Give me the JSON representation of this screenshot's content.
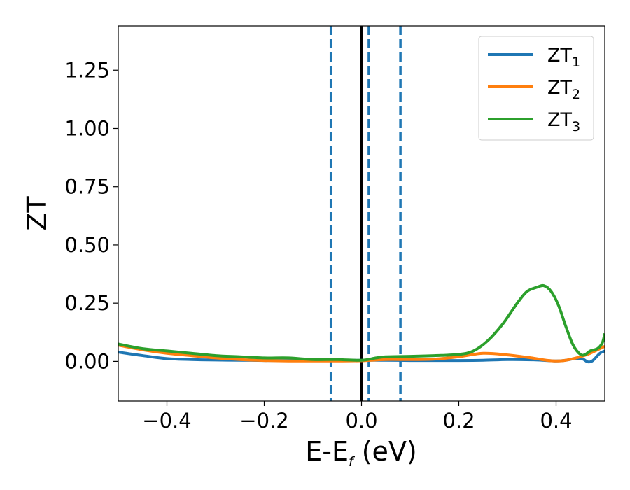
{
  "chart_data": {
    "type": "line",
    "xlabel": {
      "main": "E-E",
      "sub": "f",
      "unit": " (eV)"
    },
    "ylabel": "ZT",
    "xlim": [
      -0.5,
      0.5
    ],
    "ylim": [
      -0.17,
      1.44
    ],
    "xticks": [
      -0.4,
      -0.2,
      0.0,
      0.2,
      0.4
    ],
    "xtick_labels": [
      "−0.4",
      "−0.2",
      "0.0",
      "0.2",
      "0.4"
    ],
    "yticks": [
      0.0,
      0.25,
      0.5,
      0.75,
      1.0,
      1.25
    ],
    "ytick_labels": [
      "0.00",
      "0.25",
      "0.50",
      "0.75",
      "1.00",
      "1.25"
    ],
    "grid": false,
    "legend_position": "top-right",
    "vlines": [
      {
        "x": 0.0,
        "color": "#000000",
        "style": "solid"
      },
      {
        "x": -0.063,
        "color": "#1f77b4",
        "style": "dashed"
      },
      {
        "x": 0.015,
        "color": "#1f77b4",
        "style": "dashed"
      },
      {
        "x": 0.08,
        "color": "#1f77b4",
        "style": "dashed"
      }
    ],
    "series": [
      {
        "name": "ZT",
        "sub": "1",
        "color": "#1f77b4",
        "x": [
          -0.5,
          -0.45,
          -0.4,
          -0.35,
          -0.3,
          -0.25,
          -0.2,
          -0.15,
          -0.1,
          -0.05,
          0.0,
          0.05,
          0.1,
          0.15,
          0.2,
          0.25,
          0.3,
          0.35,
          0.38,
          0.4,
          0.42,
          0.44,
          0.455,
          0.465,
          0.475,
          0.49,
          0.5
        ],
        "y": [
          0.04,
          0.025,
          0.012,
          0.008,
          0.006,
          0.005,
          0.004,
          0.004,
          0.004,
          0.004,
          0.005,
          0.005,
          0.004,
          0.004,
          0.004,
          0.005,
          0.008,
          0.007,
          0.004,
          0.002,
          0.005,
          0.013,
          0.01,
          -0.002,
          0.003,
          0.035,
          0.045
        ]
      },
      {
        "name": "ZT",
        "sub": "2",
        "color": "#ff7f0e",
        "x": [
          -0.5,
          -0.45,
          -0.4,
          -0.35,
          -0.3,
          -0.25,
          -0.2,
          -0.15,
          -0.1,
          -0.05,
          0.0,
          0.05,
          0.1,
          0.15,
          0.2,
          0.25,
          0.3,
          0.35,
          0.38,
          0.4,
          0.42,
          0.45,
          0.47,
          0.5
        ],
        "y": [
          0.07,
          0.05,
          0.035,
          0.025,
          0.015,
          0.008,
          0.004,
          0.002,
          0.002,
          0.002,
          0.003,
          0.008,
          0.008,
          0.01,
          0.02,
          0.035,
          0.028,
          0.015,
          0.005,
          0.002,
          0.005,
          0.02,
          0.035,
          0.065
        ]
      },
      {
        "name": "ZT",
        "sub": "3",
        "color": "#2ca02c",
        "x": [
          -0.5,
          -0.45,
          -0.4,
          -0.35,
          -0.3,
          -0.25,
          -0.2,
          -0.15,
          -0.1,
          -0.05,
          0.0,
          0.03,
          0.05,
          0.1,
          0.15,
          0.2,
          0.23,
          0.26,
          0.29,
          0.32,
          0.34,
          0.36,
          0.375,
          0.39,
          0.405,
          0.42,
          0.435,
          0.45,
          0.46,
          0.47,
          0.485,
          0.495,
          0.5
        ],
        "y": [
          0.075,
          0.055,
          0.045,
          0.035,
          0.025,
          0.02,
          0.015,
          0.015,
          0.008,
          0.008,
          0.005,
          0.015,
          0.02,
          0.022,
          0.025,
          0.03,
          0.045,
          0.09,
          0.16,
          0.25,
          0.3,
          0.318,
          0.325,
          0.3,
          0.24,
          0.15,
          0.07,
          0.03,
          0.03,
          0.045,
          0.055,
          0.08,
          0.12
        ]
      }
    ]
  }
}
